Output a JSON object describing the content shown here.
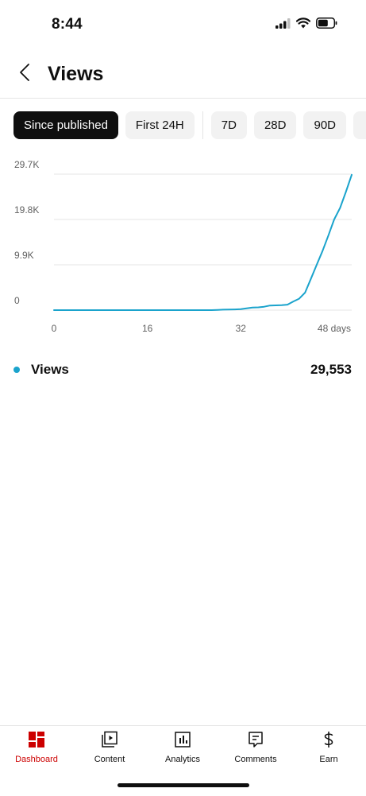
{
  "status_bar": {
    "time": "8:44",
    "icons": [
      "cellular-signal-icon",
      "wifi-icon",
      "battery-icon"
    ]
  },
  "header": {
    "back_icon": "chevron-left-icon",
    "title": "Views"
  },
  "filters": {
    "chips": [
      "Since published",
      "First 24H",
      "7D",
      "28D",
      "90D"
    ],
    "selected": "Since published"
  },
  "chart_data": {
    "type": "line",
    "title": "",
    "xlabel": "",
    "ylabel": "",
    "x_ticks": [
      "0",
      "16",
      "32",
      "48 days"
    ],
    "x_tick_values": [
      0,
      16,
      32,
      48
    ],
    "y_ticks": [
      "0",
      "9.9K",
      "19.8K",
      "29.7K"
    ],
    "y_tick_values": [
      0,
      9900,
      19800,
      29700
    ],
    "xlim": [
      0,
      51
    ],
    "ylim": [
      0,
      29700
    ],
    "grid": true,
    "series": [
      {
        "name": "Views",
        "color": "#1aa3cc",
        "x": [
          0,
          10,
          20,
          27,
          28,
          29,
          31,
          32,
          33,
          34,
          35,
          36,
          37,
          38,
          39,
          40,
          41,
          42,
          43,
          44,
          45,
          46,
          47,
          48,
          49,
          50,
          51
        ],
        "y": [
          0,
          0,
          0,
          0,
          50,
          100,
          150,
          200,
          400,
          550,
          600,
          750,
          1000,
          1050,
          1100,
          1200,
          1900,
          2500,
          3800,
          6800,
          9900,
          12900,
          16300,
          19800,
          22300,
          25800,
          29553
        ]
      }
    ]
  },
  "legend": {
    "label": "Views",
    "value": "29,553",
    "dot_color": "#1aa3cc"
  },
  "bottom_nav": {
    "items": [
      {
        "label": "Dashboard",
        "icon": "dashboard-icon"
      },
      {
        "label": "Content",
        "icon": "content-icon"
      },
      {
        "label": "Analytics",
        "icon": "analytics-icon"
      },
      {
        "label": "Comments",
        "icon": "comments-icon"
      },
      {
        "label": "Earn",
        "icon": "dollar-icon"
      }
    ],
    "active": "Dashboard",
    "active_color": "#cc0000"
  }
}
